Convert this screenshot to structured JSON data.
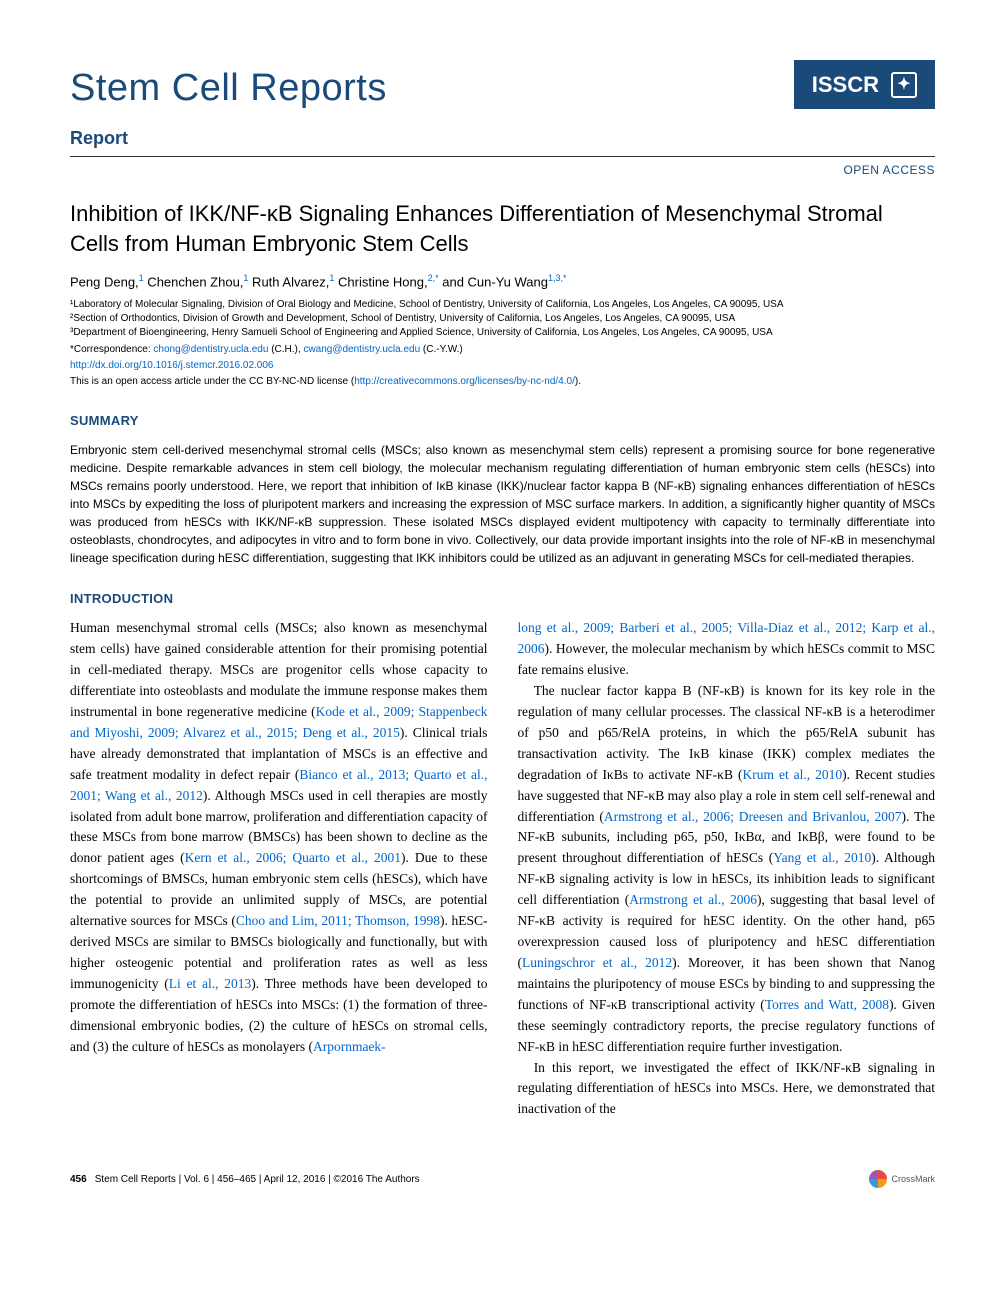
{
  "header": {
    "journal_name": "Stem Cell Reports",
    "report_label": "Report",
    "isscr_label": "ISSCR",
    "open_access": "OPEN ACCESS"
  },
  "article": {
    "title": "Inhibition of IKK/NF-κB Signaling Enhances Differentiation of Mesenchymal Stromal Cells from Human Embryonic Stem Cells",
    "authors_html": "Peng Deng,<sup>1</sup> Chenchen Zhou,<sup>1</sup> Ruth Alvarez,<sup>1</sup> Christine Hong,<sup>2,*</sup> and Cun-Yu Wang<sup>1,3,*</sup>",
    "affiliations": [
      "¹Laboratory of Molecular Signaling, Division of Oral Biology and Medicine, School of Dentistry, University of California, Los Angeles, Los Angeles, CA 90095, USA",
      "²Section of Orthodontics, Division of Growth and Development, School of Dentistry, University of California, Los Angeles, Los Angeles, CA 90095, USA",
      "³Department of Bioengineering, Henry Samueli School of Engineering and Applied Science, University of California, Los Angeles, Los Angeles, CA 90095, USA"
    ],
    "correspondence_prefix": "*Correspondence: ",
    "correspondence_email1": "chong@dentistry.ucla.edu",
    "correspondence_name1": " (C.H.), ",
    "correspondence_email2": "cwang@dentistry.ucla.edu",
    "correspondence_name2": " (C.-Y.W.)",
    "doi": "http://dx.doi.org/10.1016/j.stemcr.2016.02.006",
    "license_text": "This is an open access article under the CC BY-NC-ND license (",
    "license_url": "http://creativecommons.org/licenses/by-nc-nd/4.0/",
    "license_suffix": ")."
  },
  "summary": {
    "heading": "SUMMARY",
    "text": "Embryonic stem cell-derived mesenchymal stromal cells (MSCs; also known as mesenchymal stem cells) represent a promising source for bone regenerative medicine. Despite remarkable advances in stem cell biology, the molecular mechanism regulating differentiation of human embryonic stem cells (hESCs) into MSCs remains poorly understood. Here, we report that inhibition of IκB kinase (IKK)/nuclear factor kappa B (NF-κB) signaling enhances differentiation of hESCs into MSCs by expediting the loss of pluripotent markers and increasing the expression of MSC surface markers. In addition, a significantly higher quantity of MSCs was produced from hESCs with IKK/NF-κB suppression. These isolated MSCs displayed evident multipotency with capacity to terminally differentiate into osteoblasts, chondrocytes, and adipocytes in vitro and to form bone in vivo. Collectively, our data provide important insights into the role of NF-κB in mesenchymal lineage specification during hESC differentiation, suggesting that IKK inhibitors could be utilized as an adjuvant in generating MSCs for cell-mediated therapies."
  },
  "intro": {
    "heading": "INTRODUCTION",
    "col1": {
      "p1a": "Human mesenchymal stromal cells (MSCs; also known as mesenchymal stem cells) have gained considerable attention for their promising potential in cell-mediated therapy. MSCs are progenitor cells whose capacity to differentiate into osteoblasts and modulate the immune response makes them instrumental in bone regenerative medicine (",
      "c1": "Kode et al., 2009; Stappenbeck and Miyoshi, 2009; Alvarez et al., 2015; Deng et al., 2015",
      "p1b": "). Clinical trials have already demonstrated that implantation of MSCs is an effective and safe treatment modality in defect repair (",
      "c2": "Bianco et al., 2013; Quarto et al., 2001; Wang et al., 2012",
      "p1c": "). Although MSCs used in cell therapies are mostly isolated from adult bone marrow, proliferation and differentiation capacity of these MSCs from bone marrow (BMSCs) has been shown to decline as the donor patient ages (",
      "c3": "Kern et al., 2006; Quarto et al., 2001",
      "p1d": "). Due to these shortcomings of BMSCs, human embryonic stem cells (hESCs), which have the potential to provide an unlimited supply of MSCs, are potential alternative sources for MSCs (",
      "c4": "Choo and Lim, 2011; Thomson, 1998",
      "p1e": "). hESC-derived MSCs are similar to BMSCs biologically and functionally, but with higher osteogenic potential and proliferation rates as well as less immunogenicity (",
      "c5": "Li et al., 2013",
      "p1f": "). Three methods have been developed to promote the differentiation of hESCs into MSCs: (1) the formation of three-dimensional embryonic bodies, (2) the culture of hESCs on stromal cells, and (3) the culture of hESCs as monolayers (",
      "c6": "Arpornmaek-"
    },
    "col2": {
      "c7": "long et al., 2009; Barberi et al., 2005; Villa-Diaz et al., 2012; Karp et al., 2006",
      "p2a": "). However, the molecular mechanism by which hESCs commit to MSC fate remains elusive.",
      "p3a": "The nuclear factor kappa B (NF-κB) is known for its key role in the regulation of many cellular processes. The classical NF-κB is a heterodimer of p50 and p65/RelA proteins, in which the p65/RelA subunit has transactivation activity. The IκB kinase (IKK) complex mediates the degradation of IκBs to activate NF-κB (",
      "c8": "Krum et al., 2010",
      "p3b": "). Recent studies have suggested that NF-κB may also play a role in stem cell self-renewal and differentiation (",
      "c9": "Armstrong et al., 2006; Dreesen and Brivanlou, 2007",
      "p3c": "). The NF-κB subunits, including p65, p50, IκBα, and IκBβ, were found to be present throughout differentiation of hESCs (",
      "c10": "Yang et al., 2010",
      "p3d": "). Although NF-κB signaling activity is low in hESCs, its inhibition leads to significant cell differentiation (",
      "c11": "Armstrong et al., 2006",
      "p3e": "), suggesting that basal level of NF-κB activity is required for hESC identity. On the other hand, p65 overexpression caused loss of pluripotency and hESC differentiation (",
      "c12": "Luningschror et al., 2012",
      "p3f": "). Moreover, it has been shown that Nanog maintains the pluripotency of mouse ESCs by binding to and suppressing the functions of NF-κB transcriptional activity (",
      "c13": "Torres and Watt, 2008",
      "p3g": "). Given these seemingly contradictory reports, the precise regulatory functions of NF-κB in hESC differentiation require further investigation.",
      "p4a": "In this report, we investigated the effect of IKK/NF-κB signaling in regulating differentiation of hESCs into MSCs. Here, we demonstrated that inactivation of the"
    }
  },
  "footer": {
    "page_num": "456",
    "citation": "Stem Cell Reports | Vol. 6 | 456–465 | April 12, 2016 | ©2016 The Authors",
    "crossmark": "CrossMark"
  },
  "colors": {
    "brand_blue": "#1a4a7a",
    "link_blue": "#0066cc",
    "text": "#000000",
    "background": "#ffffff"
  }
}
